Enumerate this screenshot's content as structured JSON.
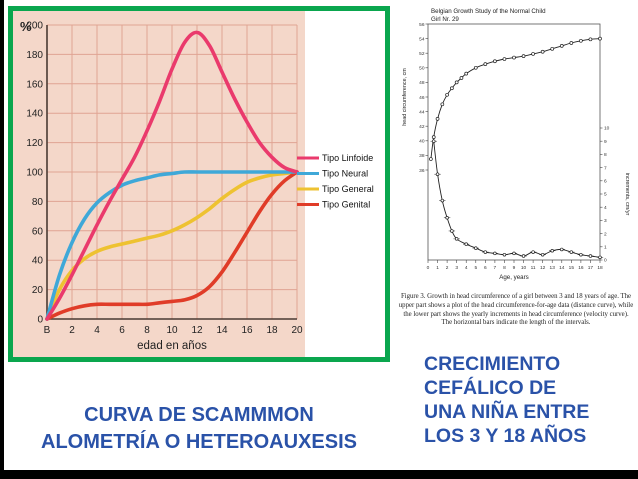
{
  "slide": {
    "background": "#ffffff",
    "frame_color": "#000000",
    "accent_text_color": "#2a52a8",
    "chart_border_color": "#0aa64e"
  },
  "captions": {
    "left": [
      "CURVA DE SCAMMMON",
      "ALOMETRÍA O HETEROAUXESIS"
    ],
    "right": [
      "CRECIMIENTO",
      "CEFÁLICO DE",
      "UNA NIÑA ENTRE",
      "LOS 3 Y 18 AÑOS"
    ]
  },
  "figure": {
    "caption": "Figure 3. Growth in head circumference of a girl between 3 and 18 years of age. The upper part shows a plot of the head circumference-for-age data (distance curve), while the lower part shows the yearly increments in head circumference (velocity curve). The horizontal bars indicate the length of the intervals."
  },
  "chart_data": [
    {
      "type": "line",
      "title": "",
      "xlabel": "edad en años",
      "ylabel": "%",
      "xlim": [
        0,
        20
      ],
      "ylim": [
        0,
        200
      ],
      "x_ticks": [
        "B",
        "2",
        "4",
        "6",
        "8",
        "10",
        "12",
        "14",
        "16",
        "18",
        "20"
      ],
      "y_ticks": [
        0,
        20,
        40,
        60,
        80,
        100,
        120,
        140,
        160,
        180,
        200
      ],
      "grid": true,
      "legend_position": "right",
      "plot_bg": "#f4d7c9",
      "grid_color": "#e0a493",
      "axis_color": "#4a3a33",
      "series": [
        {
          "name": "Tipo Linfoide",
          "color": "#ea3a6c",
          "x": [
            0,
            1,
            2,
            3,
            4,
            5,
            6,
            7,
            8,
            9,
            10,
            11,
            12,
            13,
            14,
            15,
            16,
            17,
            18,
            19,
            20
          ],
          "values": [
            0,
            14,
            30,
            47,
            64,
            80,
            95,
            110,
            128,
            148,
            170,
            188,
            195,
            186,
            168,
            150,
            134,
            120,
            110,
            103,
            100
          ]
        },
        {
          "name": "Tipo Neural",
          "color": "#3fa8d8",
          "x": [
            0,
            1,
            2,
            3,
            4,
            5,
            6,
            7,
            8,
            9,
            10,
            11,
            12,
            13,
            14,
            15,
            16,
            17,
            18,
            19,
            20
          ],
          "values": [
            0,
            30,
            52,
            68,
            79,
            86,
            91,
            94,
            96,
            98,
            99,
            100,
            100,
            100,
            100,
            100,
            100,
            100,
            100,
            100,
            100
          ]
        },
        {
          "name": "Tipo General",
          "color": "#eec231",
          "x": [
            0,
            1,
            2,
            3,
            4,
            5,
            6,
            7,
            8,
            9,
            10,
            11,
            12,
            13,
            14,
            15,
            16,
            17,
            18,
            19,
            20
          ],
          "values": [
            0,
            20,
            33,
            41,
            46,
            49,
            51,
            53,
            55,
            57,
            60,
            64,
            69,
            75,
            82,
            88,
            93,
            96,
            98,
            99,
            100
          ]
        },
        {
          "name": "Tipo Genital",
          "color": "#e03c28",
          "x": [
            0,
            1,
            2,
            3,
            4,
            5,
            6,
            7,
            8,
            9,
            10,
            11,
            12,
            13,
            14,
            15,
            16,
            17,
            18,
            19,
            20
          ],
          "values": [
            0,
            4,
            7,
            9,
            10,
            10,
            10,
            10,
            10,
            11,
            12,
            13,
            16,
            22,
            32,
            45,
            59,
            73,
            85,
            94,
            100
          ]
        }
      ]
    },
    {
      "type": "line",
      "title": "Belgian Growth Study of the Normal Child",
      "subtitle": "Girl Nr. 29",
      "xlabel": "Age, years",
      "ylabel_left": "head circumference, cm",
      "ylabel_right": "increments, cm/yr",
      "xlim": [
        0,
        18
      ],
      "x_ticks": [
        0,
        1,
        2,
        3,
        4,
        5,
        6,
        7,
        8,
        9,
        10,
        11,
        12,
        13,
        14,
        15,
        16,
        17,
        18
      ],
      "left_ticks": [
        36,
        38,
        40,
        42,
        44,
        46,
        48,
        50,
        52,
        54,
        56
      ],
      "right_ticks": [
        0,
        1,
        2,
        3,
        4,
        5,
        6,
        7,
        8,
        9,
        10
      ],
      "grid": false,
      "series": [
        {
          "name": "distance curve",
          "axis": "left",
          "x": [
            0.3,
            0.6,
            1,
            1.5,
            2,
            2.5,
            3,
            3.5,
            4,
            5,
            6,
            7,
            8,
            9,
            10,
            11,
            12,
            13,
            14,
            15,
            16,
            17,
            18
          ],
          "values": [
            37.5,
            40.5,
            43,
            45,
            46.3,
            47.2,
            48,
            48.6,
            49.2,
            50,
            50.5,
            50.9,
            51.2,
            51.4,
            51.6,
            51.9,
            52.2,
            52.6,
            53,
            53.4,
            53.7,
            53.9,
            54
          ]
        },
        {
          "name": "velocity curve",
          "axis": "right",
          "x": [
            0.6,
            1,
            1.5,
            2,
            2.5,
            3,
            4,
            5,
            6,
            7,
            8,
            9,
            10,
            11,
            12,
            13,
            14,
            15,
            16,
            17,
            18
          ],
          "values": [
            9,
            6.5,
            4.5,
            3.2,
            2.2,
            1.6,
            1.2,
            0.9,
            0.6,
            0.5,
            0.4,
            0.5,
            0.3,
            0.6,
            0.4,
            0.7,
            0.8,
            0.6,
            0.4,
            0.3,
            0.2
          ]
        }
      ]
    }
  ]
}
